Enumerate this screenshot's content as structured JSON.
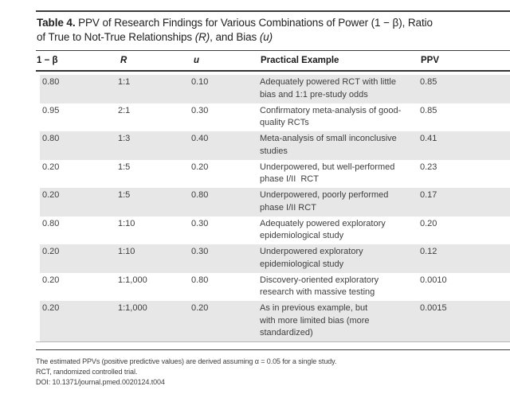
{
  "title": {
    "label_bold": "Table 4.",
    "seg1": " PPV of Research Findings for Various Combinations of Power (1 − β), Ratio\nof True to Not-True Relationships ",
    "seg_r": "(R)",
    "seg2": ", and Bias ",
    "seg_u": "(u)"
  },
  "table": {
    "headers": {
      "power": "1 − β",
      "r": "R",
      "u": "u",
      "example": "Practical Example",
      "ppv": "PPV"
    },
    "rows": [
      {
        "power": "0.80",
        "r": "1:1",
        "u": "0.10",
        "example": "Adequately powered RCT with little\nbias and 1:1 pre-study odds",
        "ppv": "0.85"
      },
      {
        "power": "0.95",
        "r": "2:1",
        "u": "0.30",
        "example": "Confirmatory meta-analysis of good-\nquality RCTs",
        "ppv": "0.85"
      },
      {
        "power": "0.80",
        "r": "1:3",
        "u": "0.40",
        "example": "Meta-analysis of small inconclusive\nstudies",
        "ppv": "0.41"
      },
      {
        "power": "0.20",
        "r": "1:5",
        "u": "0.20",
        "example": "Underpowered, but well-performed\nphase I/II  RCT",
        "ppv": "0.23"
      },
      {
        "power": "0.20",
        "r": "1:5",
        "u": "0.80",
        "example": "Underpowered, poorly performed\nphase I/II RCT",
        "ppv": "0.17"
      },
      {
        "power": "0.80",
        "r": "1:10",
        "u": "0.30",
        "example": "Adequately powered exploratory\nepidemiological study",
        "ppv": "0.20"
      },
      {
        "power": "0.20",
        "r": "1:10",
        "u": "0.30",
        "example": "Underpowered exploratory\nepidemiological study",
        "ppv": "0.12"
      },
      {
        "power": "0.20",
        "r": "1:1,000",
        "u": "0.80",
        "example": "Discovery-oriented exploratory\nresearch with massive testing",
        "ppv": "0.0010"
      },
      {
        "power": "0.20",
        "r": "1:1,000",
        "u": "0.20",
        "example": "As in previous example, but\nwith more limited bias (more\nstandardized)",
        "ppv": "0.0015"
      }
    ]
  },
  "footnotes": [
    "The estimated PPVs (positive predictive values) are derived assuming α = 0.05 for a single study.",
    "RCT, randomized controlled trial.",
    "DOI: 10.1371/journal.pmed.0020124.t004"
  ],
  "colors": {
    "row_shading": "#e7e7e8",
    "rule_dark": "#3c3c3c",
    "rule_light": "#b5b5b6",
    "body_text": "#3e3e3e",
    "heading_text": "#1a1a1a"
  }
}
